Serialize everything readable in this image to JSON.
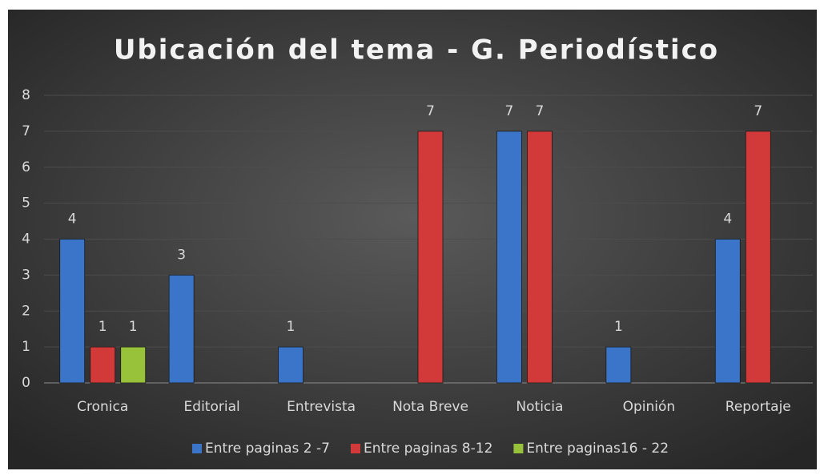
{
  "chart_data": {
    "type": "bar",
    "title": "Ubicación del tema - G. Periodístico",
    "categories": [
      "Cronica",
      "Editorial",
      "Entrevista",
      "Nota Breve",
      "Noticia",
      "Opinión",
      "Reportaje"
    ],
    "series": [
      {
        "name": "Entre paginas 2 -7",
        "color": "#3a75c9",
        "values": [
          4,
          3,
          1,
          null,
          7,
          1,
          4
        ]
      },
      {
        "name": "Entre paginas 8-12",
        "color": "#d23a3a",
        "values": [
          1,
          null,
          null,
          7,
          7,
          null,
          7
        ]
      },
      {
        "name": "Entre paginas16 - 22",
        "color": "#98c23a",
        "values": [
          1,
          null,
          null,
          null,
          null,
          null,
          null
        ]
      }
    ],
    "ylim": [
      0,
      8
    ],
    "yticks": [
      0,
      1,
      2,
      3,
      4,
      5,
      6,
      7,
      8
    ],
    "grid": true,
    "legend": "bottom"
  }
}
